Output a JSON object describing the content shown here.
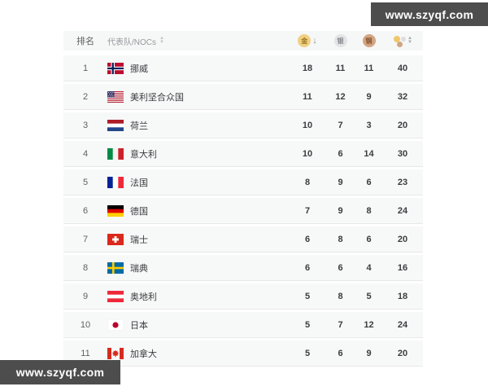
{
  "watermark": {
    "text": "www.szyqf.com",
    "bg": "#4d4d4d"
  },
  "table": {
    "header": {
      "rank_label": "排名",
      "team_label": "代表队/NOCs",
      "gold_glyph": "金",
      "silver_glyph": "银",
      "bronze_glyph": "铜",
      "gold_sort_arrow": "↓"
    },
    "columns": [
      "rank",
      "team",
      "gold",
      "silver",
      "bronze",
      "total"
    ],
    "sort_state": {
      "column": "gold",
      "direction": "desc"
    },
    "colors": {
      "gold": "#f0d081",
      "silver": "#e4e4e6",
      "bronze": "#d2a583",
      "row_bg": "#f7f8f8",
      "watermark_bg": "#4d4d4d"
    },
    "rows": [
      {
        "rank": 1,
        "flag": "norway",
        "name": "挪威",
        "gold": 18,
        "silver": 11,
        "bronze": 11,
        "total": 40
      },
      {
        "rank": 2,
        "flag": "usa",
        "name": "美利坚合众国",
        "gold": 11,
        "silver": 12,
        "bronze": 9,
        "total": 32
      },
      {
        "rank": 3,
        "flag": "netherlands",
        "name": "荷兰",
        "gold": 10,
        "silver": 7,
        "bronze": 3,
        "total": 20
      },
      {
        "rank": 4,
        "flag": "italy",
        "name": "意大利",
        "gold": 10,
        "silver": 6,
        "bronze": 14,
        "total": 30
      },
      {
        "rank": 5,
        "flag": "france",
        "name": "法国",
        "gold": 8,
        "silver": 9,
        "bronze": 6,
        "total": 23
      },
      {
        "rank": 6,
        "flag": "germany",
        "name": "德国",
        "gold": 7,
        "silver": 9,
        "bronze": 8,
        "total": 24
      },
      {
        "rank": 7,
        "flag": "switzerland",
        "name": "瑞士",
        "gold": 6,
        "silver": 8,
        "bronze": 6,
        "total": 20
      },
      {
        "rank": 8,
        "flag": "sweden",
        "name": "瑞典",
        "gold": 6,
        "silver": 6,
        "bronze": 4,
        "total": 16
      },
      {
        "rank": 9,
        "flag": "austria",
        "name": "奥地利",
        "gold": 5,
        "silver": 8,
        "bronze": 5,
        "total": 18
      },
      {
        "rank": 10,
        "flag": "japan",
        "name": "日本",
        "gold": 5,
        "silver": 7,
        "bronze": 12,
        "total": 24
      },
      {
        "rank": 11,
        "flag": "canada",
        "name": "加拿大",
        "gold": 5,
        "silver": 6,
        "bronze": 9,
        "total": 20
      }
    ]
  }
}
